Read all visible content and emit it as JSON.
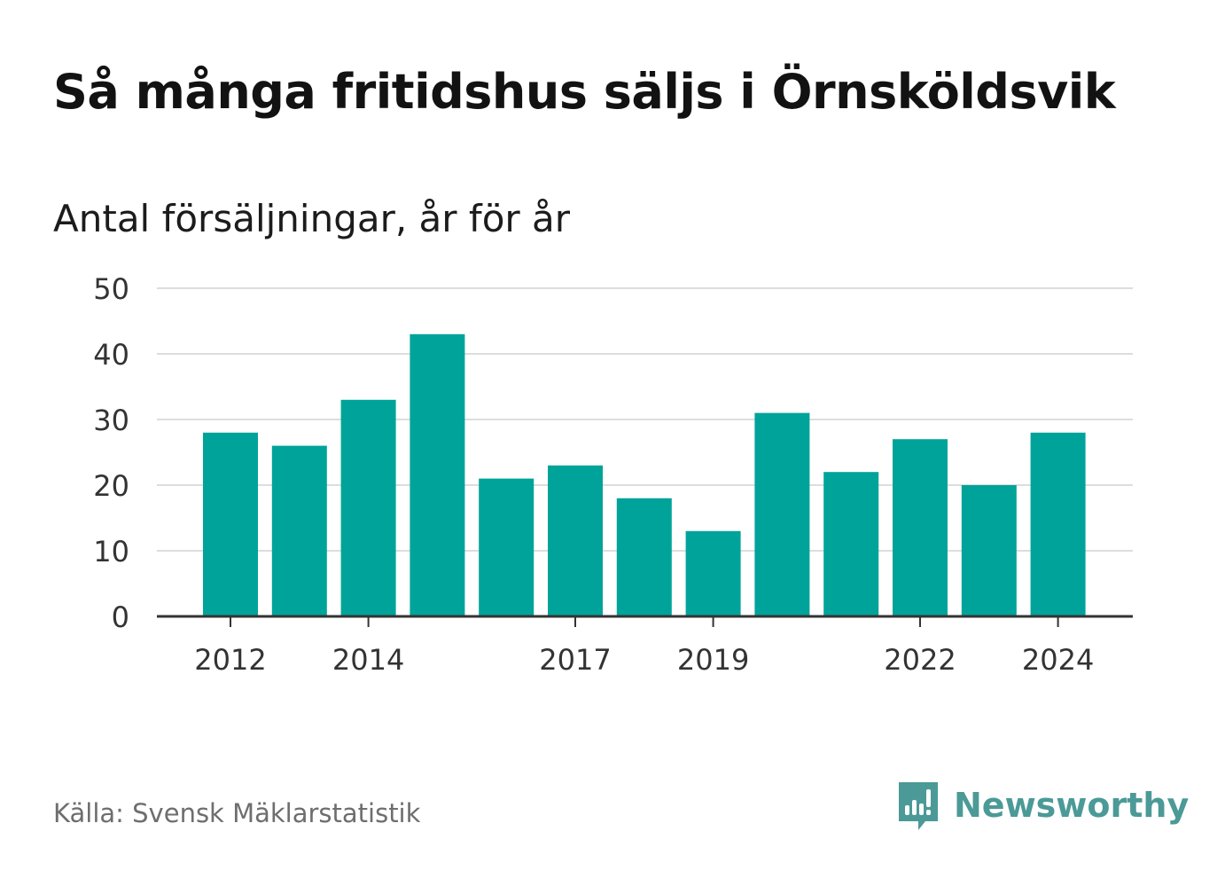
{
  "title": "Så många fritidshus säljs i Örnsköldsvik",
  "subtitle": "Antal försäljningar, år för år",
  "source": "Källa: Svensk Mäklarstatistik",
  "brand": {
    "name": "Newsworthy",
    "icon": "newsworthy-logo-icon",
    "color": "#4b9a97"
  },
  "colors": {
    "bar": "#00a39a",
    "grid": "#dddddd",
    "axis": "#333333"
  },
  "chart_data": {
    "type": "bar",
    "categories": [
      "2012",
      "2013",
      "2014",
      "2015",
      "2016",
      "2017",
      "2018",
      "2019",
      "2020",
      "2021",
      "2022",
      "2023",
      "2024"
    ],
    "values": [
      28,
      26,
      33,
      43,
      21,
      23,
      18,
      13,
      31,
      22,
      27,
      20,
      28
    ],
    "x_tick_labels": [
      "2012",
      "2014",
      "2017",
      "2019",
      "2022",
      "2024"
    ],
    "y_ticks": [
      0,
      10,
      20,
      30,
      40,
      50
    ],
    "ylim": [
      0,
      50
    ],
    "grid": true,
    "xlabel": "",
    "ylabel": ""
  }
}
